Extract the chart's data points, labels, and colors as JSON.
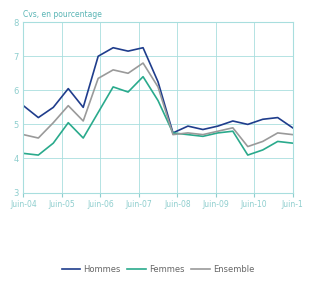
{
  "ylabel": "Cvs, en pourcentage",
  "ylim": [
    3,
    8
  ],
  "yticks": [
    3,
    4,
    5,
    6,
    7,
    8
  ],
  "x_labels": [
    "Juin-04",
    "Juin-05",
    "Juin-06",
    "Juin-07",
    "Juin-08",
    "Juin-09",
    "Juin-10",
    "Juin-1"
  ],
  "hommes": [
    5.55,
    5.2,
    5.5,
    6.05,
    5.5,
    7.0,
    7.25,
    7.15,
    7.25,
    6.25,
    4.75,
    4.95,
    4.85,
    4.95,
    5.1,
    5.0,
    5.15,
    5.2,
    4.9
  ],
  "femmes": [
    4.15,
    4.1,
    4.45,
    5.05,
    4.6,
    5.35,
    6.1,
    5.95,
    6.4,
    5.7,
    4.75,
    4.7,
    4.65,
    4.75,
    4.8,
    4.1,
    4.25,
    4.5,
    4.45
  ],
  "ensemble": [
    4.7,
    4.6,
    5.05,
    5.55,
    5.1,
    6.35,
    6.6,
    6.5,
    6.8,
    6.1,
    4.7,
    4.75,
    4.7,
    4.8,
    4.9,
    4.35,
    4.5,
    4.75,
    4.7
  ],
  "color_hommes": "#1f3d8c",
  "color_femmes": "#2aaa8c",
  "color_ensemble": "#9a9a9a",
  "background_color": "#ffffff",
  "grid_color": "#a8dede",
  "label_hommes": "Hommes",
  "label_femmes": "Femmes",
  "label_ensemble": "Ensemble",
  "linewidth": 1.2,
  "tick_color": "#8ecece",
  "tick_label_color": "#8ecece",
  "ylabel_color": "#5ab5b5"
}
